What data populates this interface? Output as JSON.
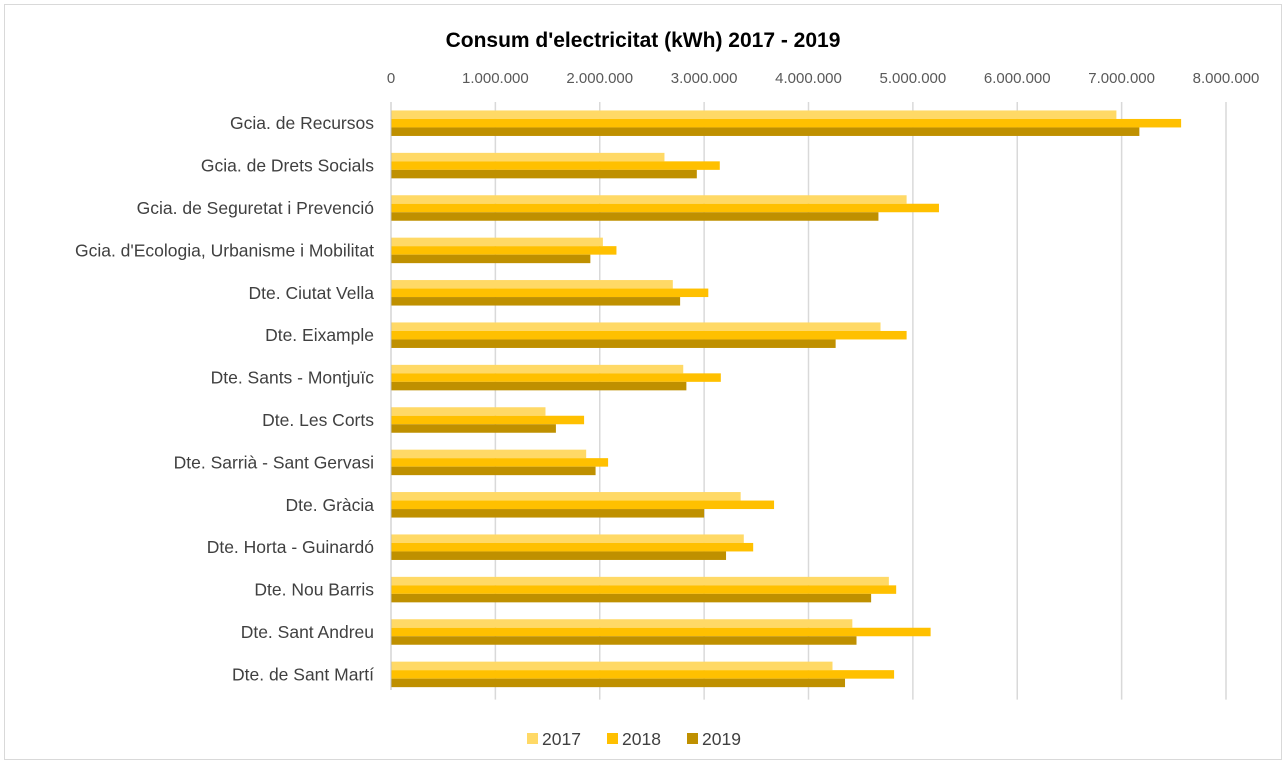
{
  "chart_data": {
    "type": "bar",
    "orientation": "horizontal",
    "title": "Consum d'electricitat (kWh) 2017 - 2019",
    "xlabel": "",
    "ylabel": "",
    "xlim": [
      0,
      8000000
    ],
    "x_ticks": [
      0,
      1000000,
      2000000,
      3000000,
      4000000,
      5000000,
      6000000,
      7000000,
      8000000
    ],
    "x_tick_labels": [
      "0",
      "1.000.000",
      "2.000.000",
      "3.000.000",
      "4.000.000",
      "5.000.000",
      "6.000.000",
      "7.000.000",
      "8.000.000"
    ],
    "grid": "vertical",
    "legend_position": "bottom",
    "categories": [
      "Gcia. de Recursos",
      "Gcia. de Drets Socials",
      "Gcia. de Seguretat i Prevenció",
      "Gcia. d'Ecologia, Urbanisme i Mobilitat",
      "Dte. Ciutat Vella",
      "Dte. Eixample",
      "Dte. Sants - Montjuïc",
      "Dte. Les Corts",
      "Dte. Sarrià - Sant Gervasi",
      "Dte. Gràcia",
      "Dte. Horta - Guinardó",
      "Dte. Nou Barris",
      "Dte. Sant Andreu",
      "Dte. de Sant Martí"
    ],
    "series": [
      {
        "name": "2017",
        "color": "#FFD966",
        "values": [
          6950000,
          2620000,
          4940000,
          2030000,
          2700000,
          4690000,
          2800000,
          1480000,
          1870000,
          3350000,
          3380000,
          4770000,
          4420000,
          4230000
        ]
      },
      {
        "name": "2018",
        "color": "#FFC000",
        "values": [
          7570000,
          3150000,
          5250000,
          2160000,
          3040000,
          4940000,
          3160000,
          1850000,
          2080000,
          3670000,
          3470000,
          4840000,
          5170000,
          4820000
        ]
      },
      {
        "name": "2019",
        "color": "#BF9000",
        "values": [
          7170000,
          2930000,
          4670000,
          1910000,
          2770000,
          4260000,
          2830000,
          1580000,
          1960000,
          3000000,
          3210000,
          4600000,
          4460000,
          4350000
        ]
      }
    ]
  }
}
